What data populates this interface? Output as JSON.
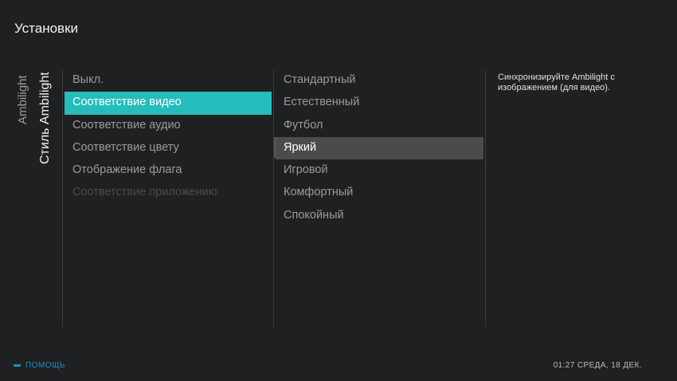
{
  "header": {
    "title": "Установки"
  },
  "breadcrumb": [
    "Ambilight",
    "Стиль Ambilight"
  ],
  "menu_styles": {
    "items": [
      {
        "label": "Выкл.",
        "state": "normal"
      },
      {
        "label": "Соответствие видео",
        "state": "selected"
      },
      {
        "label": "Соответствие аудио",
        "state": "normal"
      },
      {
        "label": "Соответствие цвету",
        "state": "normal"
      },
      {
        "label": "Отображение флага",
        "state": "normal"
      },
      {
        "label": "Соответствие приложению",
        "state": "disabled"
      }
    ]
  },
  "menu_modes": {
    "items": [
      {
        "label": "Стандартный",
        "state": "normal"
      },
      {
        "label": "Естественный",
        "state": "normal"
      },
      {
        "label": "Футбол",
        "state": "normal"
      },
      {
        "label": "Яркий",
        "state": "focused"
      },
      {
        "label": "Игровой",
        "state": "normal"
      },
      {
        "label": "Комфортный",
        "state": "normal"
      },
      {
        "label": "Спокойный",
        "state": "normal"
      }
    ]
  },
  "description": "Синхронизируйте Ambilight с изображением (для видео).",
  "footer": {
    "help_label": "ПОМОЩЬ",
    "datetime": "01:27 СРЕДА, 18 ДЕК."
  },
  "colors": {
    "accent": "#25bdbc",
    "help": "#1b8fc9",
    "background": "#1f2022",
    "focus": "#4a4b4d"
  }
}
